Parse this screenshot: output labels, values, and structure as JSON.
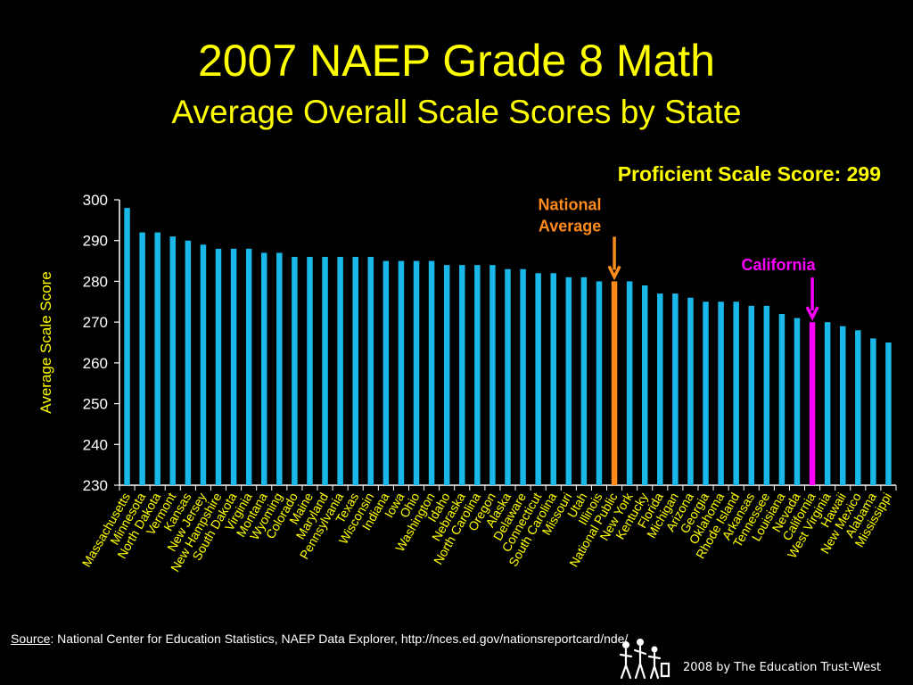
{
  "page": {
    "title": "2007 NAEP Grade 8 Math",
    "subtitle": "Average Overall Scale Scores by State",
    "proficient_label": "Proficient Scale Score: 299",
    "source_word": "Source",
    "source_rest": ":  National Center for Education Statistics, NAEP Data Explorer, http://nces.ed.gov/nationsreportcard/nde/",
    "copyright": "2008 by The Education Trust-West"
  },
  "colors": {
    "background": "#000000",
    "title": "#ffff00",
    "axis_text": "#ffffff",
    "ylabel": "#ffff00",
    "category_labels": "#ffff00",
    "bar_default": "#1ab8e8",
    "bar_national": "#ff8c1a",
    "bar_california": "#ff00ff"
  },
  "chart_data": {
    "type": "bar",
    "title": "2007 NAEP Grade 8 Math",
    "subtitle": "Average Overall Scale Scores by State",
    "xlabel": "",
    "ylabel": "Average Scale Score",
    "ylim": [
      230,
      300
    ],
    "yticks": [
      230,
      240,
      250,
      260,
      270,
      280,
      290,
      300
    ],
    "grid": false,
    "categories": [
      "Massachusetts",
      "Minnesota",
      "North Dakota",
      "Vermont",
      "Kansas",
      "New Jersey",
      "New Hampshire",
      "South Dakota",
      "Virginia",
      "Montana",
      "Wyoming",
      "Colorado",
      "Maine",
      "Maryland",
      "Pennsylvania",
      "Texas",
      "Wisconsin",
      "Indiana",
      "Iowa",
      "Ohio",
      "Washington",
      "Idaho",
      "Nebraska",
      "North Carolina",
      "Oregon",
      "Alaska",
      "Delaware",
      "Connecticut",
      "South Carolina",
      "Missouri",
      "Utah",
      "Illinois",
      "National Public",
      "New York",
      "Kentucky",
      "Florida",
      "Michigan",
      "Arizona",
      "Georgia",
      "Oklahoma",
      "Rhode Island",
      "Arkansas",
      "Tennessee",
      "Louisiana",
      "Nevada",
      "California",
      "West Virginia",
      "Hawaii",
      "New Mexico",
      "Alabama",
      "Mississippi"
    ],
    "values": [
      298,
      292,
      292,
      291,
      290,
      289,
      288,
      288,
      288,
      287,
      287,
      286,
      286,
      286,
      286,
      286,
      286,
      285,
      285,
      285,
      285,
      284,
      284,
      284,
      284,
      283,
      283,
      282,
      282,
      281,
      281,
      280,
      280,
      280,
      279,
      277,
      277,
      276,
      275,
      275,
      275,
      274,
      274,
      272,
      271,
      270,
      270,
      269,
      268,
      266,
      265
    ],
    "highlights": [
      {
        "category": "National Public",
        "color_key": "bar_national"
      },
      {
        "category": "California",
        "color_key": "bar_california"
      }
    ],
    "annotations": [
      {
        "text_lines": [
          "National",
          "Average"
        ],
        "target": "National Public",
        "color": "#ff8c1a"
      },
      {
        "text_lines": [
          "California"
        ],
        "target": "California",
        "color": "#ff00ff"
      }
    ]
  }
}
